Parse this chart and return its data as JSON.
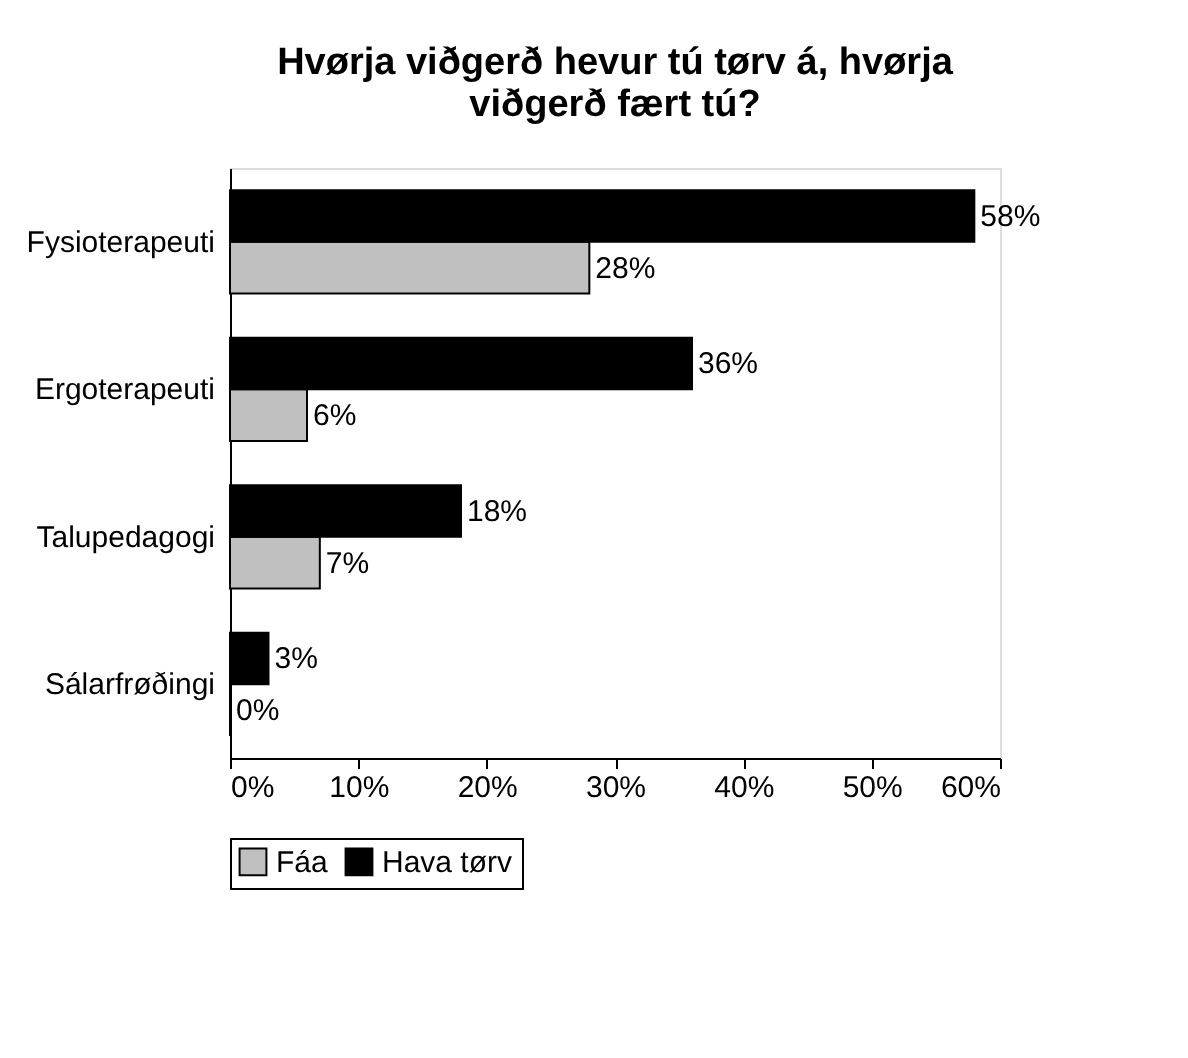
{
  "chart_data": {
    "type": "bar",
    "orientation": "horizontal",
    "title": "Hvørja viðgerð hevur tú tørv á, hvørja viðgerð fært tú?",
    "categories": [
      "Fysioterapeuti",
      "Ergoterapeuti",
      "Talupedagogi",
      "Sálarfrøðingi"
    ],
    "series": [
      {
        "name": "Fáa",
        "color": "#c0c0c0",
        "values": [
          28,
          6,
          7,
          0
        ],
        "value_labels": [
          "28%",
          "6%",
          "7%",
          "0%"
        ]
      },
      {
        "name": "Hava tørv",
        "color": "#000000",
        "values": [
          58,
          36,
          18,
          3
        ],
        "value_labels": [
          "58%",
          "36%",
          "18%",
          "3%"
        ]
      }
    ],
    "xlim": [
      0,
      60
    ],
    "xticks": [
      {
        "value": 0,
        "label": "0%"
      },
      {
        "value": 10,
        "label": "10%"
      },
      {
        "value": 20,
        "label": "20%"
      },
      {
        "value": 30,
        "label": "30%"
      },
      {
        "value": 40,
        "label": "40%"
      },
      {
        "value": 50,
        "label": "50%"
      },
      {
        "value": 60,
        "label": "60%"
      }
    ],
    "legend": "bottom",
    "grid": false
  }
}
